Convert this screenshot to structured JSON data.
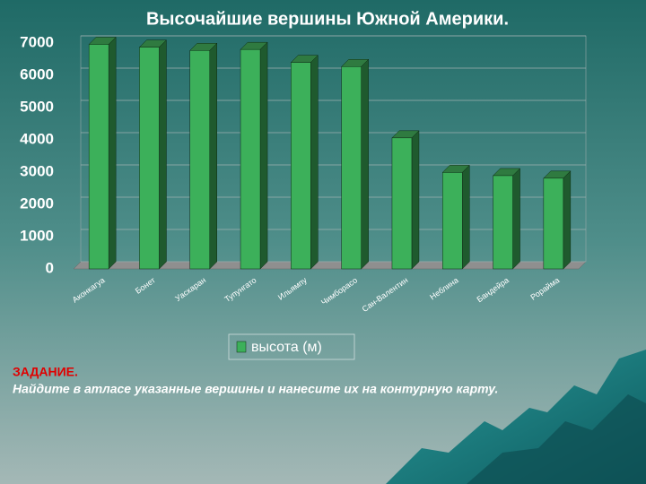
{
  "chart_data": {
    "type": "bar3d",
    "title": "Высочайшие вершины Южной Америки.",
    "categories": [
      "Аконкагуа",
      "Бонет",
      "Уаскаран",
      "Тупунгато",
      "Ильямпу",
      "Чимборасо",
      "Сан-Валентин",
      "Неблина",
      "Бандейра",
      "Рорайма"
    ],
    "series": [
      {
        "name": "высота (м)",
        "color": "#3cb05a",
        "values": [
          6960,
          6870,
          6770,
          6800,
          6400,
          6270,
          4060,
          2990,
          2890,
          2810
        ]
      }
    ],
    "ylim": [
      0,
      7000
    ],
    "yticks": [
      0,
      1000,
      2000,
      3000,
      4000,
      5000,
      6000,
      7000
    ],
    "grid": true
  },
  "task": {
    "heading": "ЗАДАНИЕ.",
    "text": "Найдите в атласе указанные вершины и нанесите их на контурную карту."
  }
}
